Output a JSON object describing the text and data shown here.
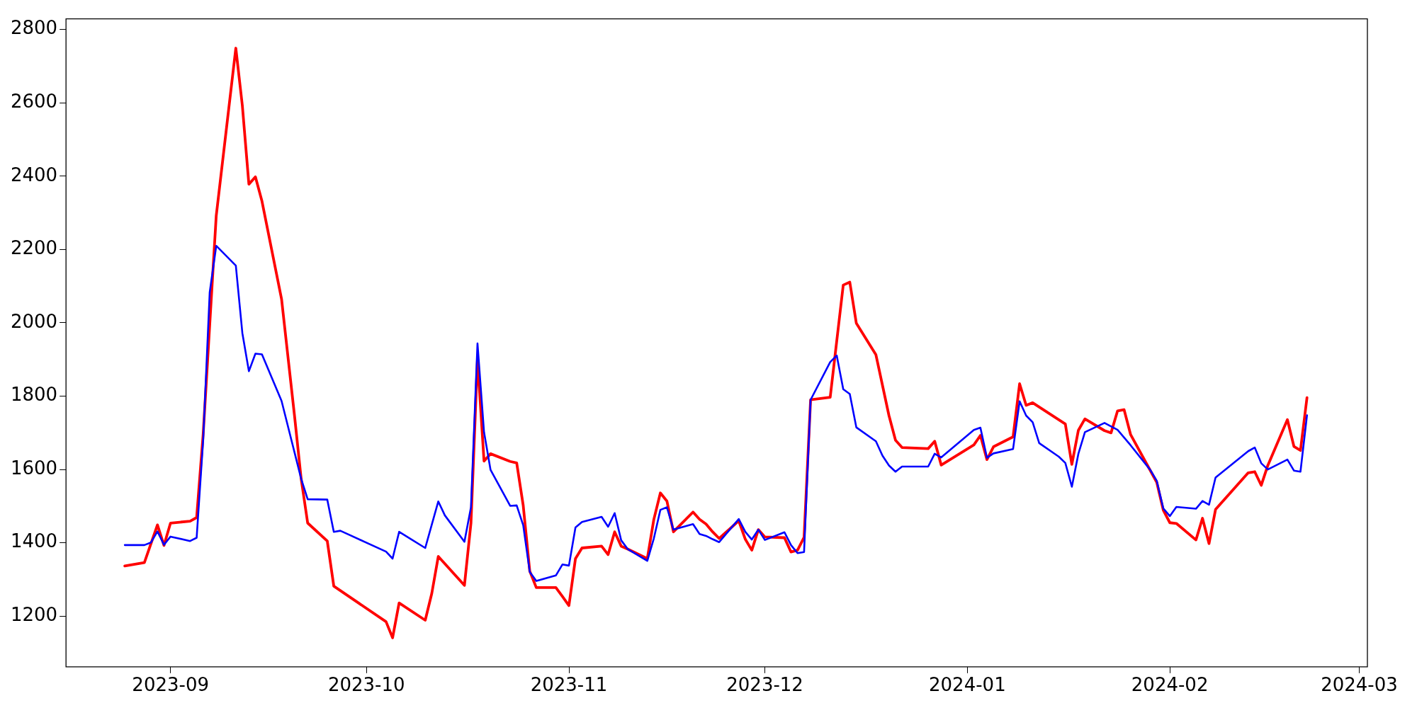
{
  "chart_data": {
    "type": "line",
    "xlim": [
      "2023-08-16",
      "2024-03-02T06:00"
    ],
    "xticks": [
      {
        "value": "2023-09-01",
        "label": "2023-09"
      },
      {
        "value": "2023-10-01",
        "label": "2023-10"
      },
      {
        "value": "2023-11-01",
        "label": "2023-11"
      },
      {
        "value": "2023-12-01",
        "label": "2023-12"
      },
      {
        "value": "2024-01-01",
        "label": "2024-01"
      },
      {
        "value": "2024-02-01",
        "label": "2024-02"
      },
      {
        "value": "2024-03-01",
        "label": "2024-03"
      }
    ],
    "ylim": [
      1062,
      2829
    ],
    "yticks": [
      1200,
      1400,
      1600,
      1800,
      2000,
      2200,
      2400,
      2600,
      2800
    ],
    "grid": false,
    "legend": false,
    "line_style": "solid",
    "marker": "none",
    "series": [
      {
        "color": "#ff0000",
        "x": [
          "2023-08-25",
          "2023-08-28",
          "2023-08-30",
          "2023-08-31",
          "2023-09-01",
          "2023-09-04",
          "2023-09-05",
          "2023-09-06",
          "2023-09-08",
          "2023-09-11",
          "2023-09-12",
          "2023-09-13",
          "2023-09-14",
          "2023-09-15",
          "2023-09-18",
          "2023-09-20",
          "2023-09-21",
          "2023-09-22",
          "2023-09-25",
          "2023-09-26",
          "2023-10-04",
          "2023-10-05",
          "2023-10-06",
          "2023-10-10",
          "2023-10-11",
          "2023-10-12",
          "2023-10-16",
          "2023-10-17",
          "2023-10-18",
          "2023-10-19",
          "2023-10-20",
          "2023-10-23",
          "2023-10-24",
          "2023-10-25",
          "2023-10-26",
          "2023-10-27",
          "2023-10-30",
          "2023-10-31",
          "2023-11-01",
          "2023-11-02",
          "2023-11-03",
          "2023-11-06",
          "2023-11-07",
          "2023-11-08",
          "2023-11-09",
          "2023-11-10",
          "2023-11-13",
          "2023-11-14",
          "2023-11-15",
          "2023-11-16",
          "2023-11-17",
          "2023-11-20",
          "2023-11-21",
          "2023-11-22",
          "2023-11-23",
          "2023-11-24",
          "2023-11-27",
          "2023-11-28",
          "2023-11-29",
          "2023-11-30",
          "2023-12-01",
          "2023-12-04",
          "2023-12-05",
          "2023-12-06",
          "2023-12-07",
          "2023-12-08",
          "2023-12-11",
          "2023-12-13",
          "2023-12-14",
          "2023-12-15",
          "2023-12-18",
          "2023-12-20",
          "2023-12-21",
          "2023-12-22",
          "2023-12-26",
          "2023-12-27",
          "2023-12-28",
          "2024-01-02",
          "2024-01-03",
          "2024-01-04",
          "2024-01-05",
          "2024-01-08",
          "2024-01-09",
          "2024-01-10",
          "2024-01-11",
          "2024-01-16",
          "2024-01-17",
          "2024-01-18",
          "2024-01-19",
          "2024-01-22",
          "2024-01-23",
          "2024-01-24",
          "2024-01-25",
          "2024-01-26",
          "2024-01-30",
          "2024-01-31",
          "2024-02-01",
          "2024-02-02",
          "2024-02-05",
          "2024-02-06",
          "2024-02-07",
          "2024-02-08",
          "2024-02-13",
          "2024-02-14",
          "2024-02-15",
          "2024-02-16",
          "2024-02-19",
          "2024-02-20",
          "2024-02-21",
          "2024-02-22"
        ],
        "values": [
          1337,
          1346,
          1449,
          1393,
          1454,
          1459,
          1469,
          1696,
          2292,
          2749,
          2592,
          2378,
          2398,
          2332,
          2065,
          1744,
          1575,
          1454,
          1405,
          1282,
          1185,
          1141,
          1236,
          1189,
          1262,
          1363,
          1284,
          1454,
          1902,
          1623,
          1643,
          1622,
          1618,
          1502,
          1323,
          1278,
          1278,
          1254,
          1229,
          1357,
          1386,
          1391,
          1368,
          1430,
          1391,
          1383,
          1357,
          1464,
          1536,
          1514,
          1430,
          1484,
          1464,
          1451,
          1430,
          1412,
          1460,
          1410,
          1380,
          1436,
          1416,
          1414,
          1375,
          1380,
          1415,
          1790,
          1797,
          2103,
          2111,
          1999,
          1913,
          1747,
          1680,
          1660,
          1657,
          1677,
          1612,
          1667,
          1693,
          1627,
          1662,
          1689,
          1834,
          1775,
          1782,
          1724,
          1614,
          1707,
          1738,
          1706,
          1700,
          1760,
          1763,
          1695,
          1565,
          1489,
          1455,
          1453,
          1408,
          1467,
          1398,
          1491,
          1591,
          1594,
          1557,
          1611,
          1736,
          1663,
          1652,
          1796
        ]
      },
      {
        "color": "#0000ff",
        "x": [
          "2023-08-25",
          "2023-08-28",
          "2023-08-29",
          "2023-08-30",
          "2023-08-31",
          "2023-09-01",
          "2023-09-04",
          "2023-09-05",
          "2023-09-06",
          "2023-09-07",
          "2023-09-08",
          "2023-09-11",
          "2023-09-12",
          "2023-09-13",
          "2023-09-14",
          "2023-09-15",
          "2023-09-18",
          "2023-09-21",
          "2023-09-22",
          "2023-09-25",
          "2023-09-26",
          "2023-09-27",
          "2023-10-04",
          "2023-10-05",
          "2023-10-06",
          "2023-10-10",
          "2023-10-12",
          "2023-10-13",
          "2023-10-16",
          "2023-10-17",
          "2023-10-18",
          "2023-10-19",
          "2023-10-20",
          "2023-10-23",
          "2023-10-24",
          "2023-10-25",
          "2023-10-26",
          "2023-10-27",
          "2023-10-30",
          "2023-10-31",
          "2023-11-01",
          "2023-11-02",
          "2023-11-03",
          "2023-11-06",
          "2023-11-07",
          "2023-11-08",
          "2023-11-09",
          "2023-11-10",
          "2023-11-13",
          "2023-11-14",
          "2023-11-15",
          "2023-11-16",
          "2023-11-17",
          "2023-11-20",
          "2023-11-21",
          "2023-11-22",
          "2023-11-23",
          "2023-11-24",
          "2023-11-27",
          "2023-11-28",
          "2023-11-29",
          "2023-11-30",
          "2023-12-01",
          "2023-12-04",
          "2023-12-05",
          "2023-12-06",
          "2023-12-07",
          "2023-12-08",
          "2023-12-11",
          "2023-12-12",
          "2023-12-13",
          "2023-12-14",
          "2023-12-15",
          "2023-12-18",
          "2023-12-19",
          "2023-12-20",
          "2023-12-21",
          "2023-12-22",
          "2023-12-26",
          "2023-12-27",
          "2023-12-28",
          "2024-01-02",
          "2024-01-03",
          "2024-01-04",
          "2024-01-05",
          "2024-01-08",
          "2024-01-09",
          "2024-01-10",
          "2024-01-11",
          "2024-01-12",
          "2024-01-15",
          "2024-01-16",
          "2024-01-17",
          "2024-01-18",
          "2024-01-19",
          "2024-01-22",
          "2024-01-24",
          "2024-01-26",
          "2024-01-29",
          "2024-01-30",
          "2024-01-31",
          "2024-02-01",
          "2024-02-02",
          "2024-02-05",
          "2024-02-06",
          "2024-02-07",
          "2024-02-08",
          "2024-02-13",
          "2024-02-14",
          "2024-02-15",
          "2024-02-16",
          "2024-02-19",
          "2024-02-20",
          "2024-02-21",
          "2024-02-22"
        ],
        "values": [
          1394,
          1394,
          1401,
          1431,
          1395,
          1417,
          1405,
          1414,
          1680,
          2083,
          2210,
          2156,
          1972,
          1868,
          1916,
          1914,
          1787,
          1575,
          1519,
          1518,
          1430,
          1433,
          1376,
          1357,
          1430,
          1386,
          1513,
          1475,
          1403,
          1497,
          1944,
          1702,
          1599,
          1501,
          1502,
          1448,
          1321,
          1296,
          1311,
          1341,
          1338,
          1442,
          1457,
          1471,
          1444,
          1481,
          1407,
          1383,
          1351,
          1412,
          1490,
          1497,
          1436,
          1451,
          1424,
          1419,
          1410,
          1402,
          1465,
          1430,
          1409,
          1436,
          1408,
          1429,
          1394,
          1372,
          1375,
          1790,
          1893,
          1911,
          1819,
          1806,
          1715,
          1677,
          1638,
          1611,
          1594,
          1608,
          1608,
          1643,
          1633,
          1708,
          1714,
          1632,
          1644,
          1656,
          1786,
          1747,
          1729,
          1672,
          1635,
          1618,
          1553,
          1643,
          1702,
          1727,
          1708,
          1666,
          1599,
          1569,
          1494,
          1473,
          1498,
          1493,
          1514,
          1504,
          1578,
          1650,
          1660,
          1617,
          1600,
          1627,
          1597,
          1594,
          1748
        ]
      }
    ]
  }
}
